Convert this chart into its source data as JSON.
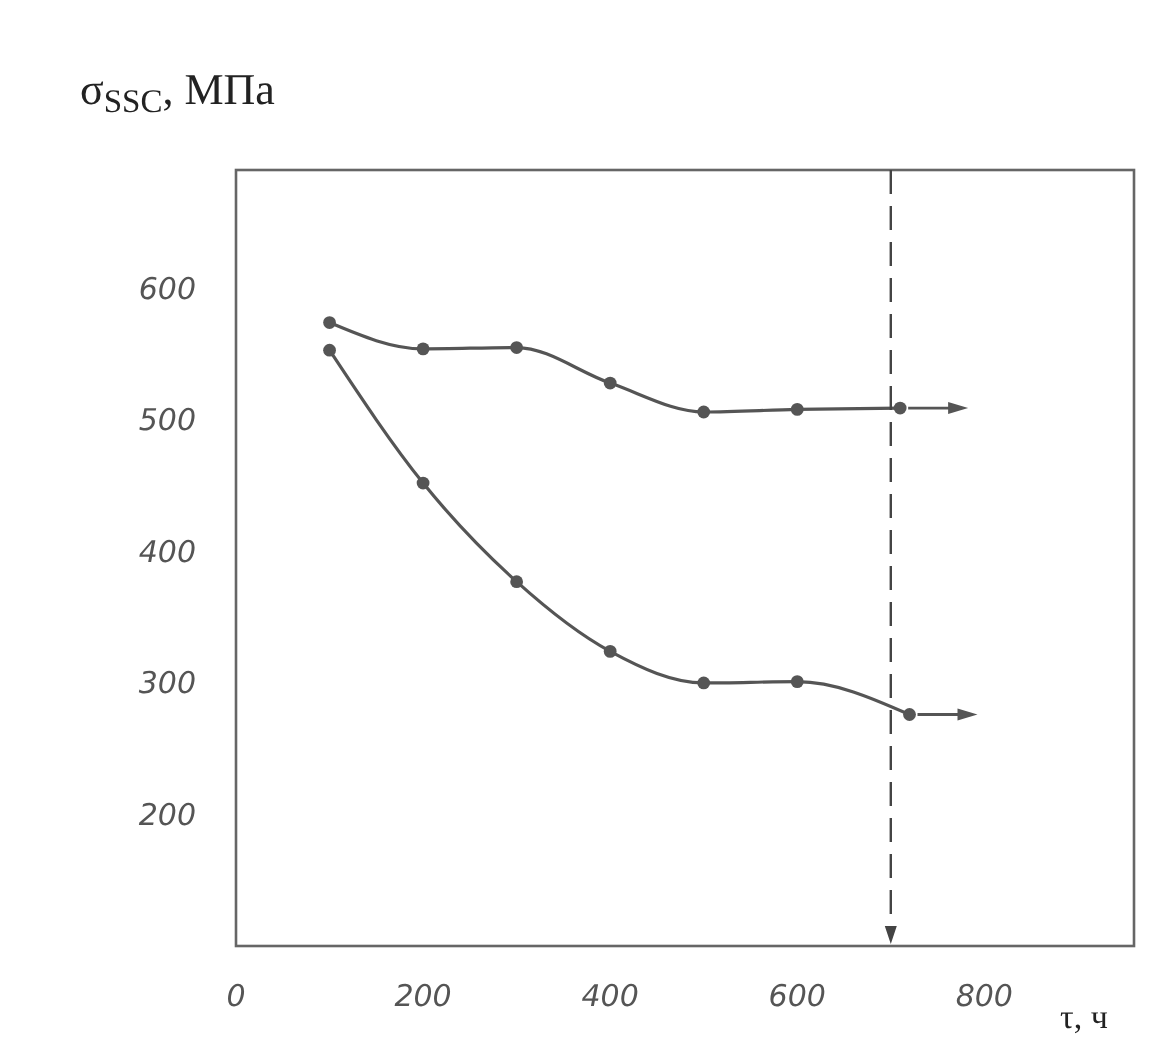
{
  "chart_data": {
    "type": "line",
    "ylabel": "σ$_{SSC}$, МПа",
    "xlabel": "τ, ч",
    "xlim": [
      0,
      960
    ],
    "ylim": [
      100,
      690
    ],
    "xticks": [
      0,
      200,
      400,
      600,
      800
    ],
    "yticks": [
      200,
      300,
      400,
      500,
      600
    ],
    "marker": "circle",
    "line_style": "solid",
    "grid": false,
    "series": [
      {
        "color": "#555555",
        "x": [
          100,
          200,
          300,
          400,
          500,
          600,
          710
        ],
        "values": [
          574,
          554,
          555,
          528,
          506,
          508,
          509
        ]
      },
      {
        "color": "#555555",
        "x": [
          100,
          200,
          300,
          400,
          500,
          600,
          720
        ],
        "values": [
          553,
          452,
          377,
          324,
          300,
          301,
          276
        ]
      }
    ],
    "ref_lines": [
      {
        "axis": "x",
        "value": 700,
        "color": "#444444",
        "line_style": "dashed"
      }
    ]
  }
}
